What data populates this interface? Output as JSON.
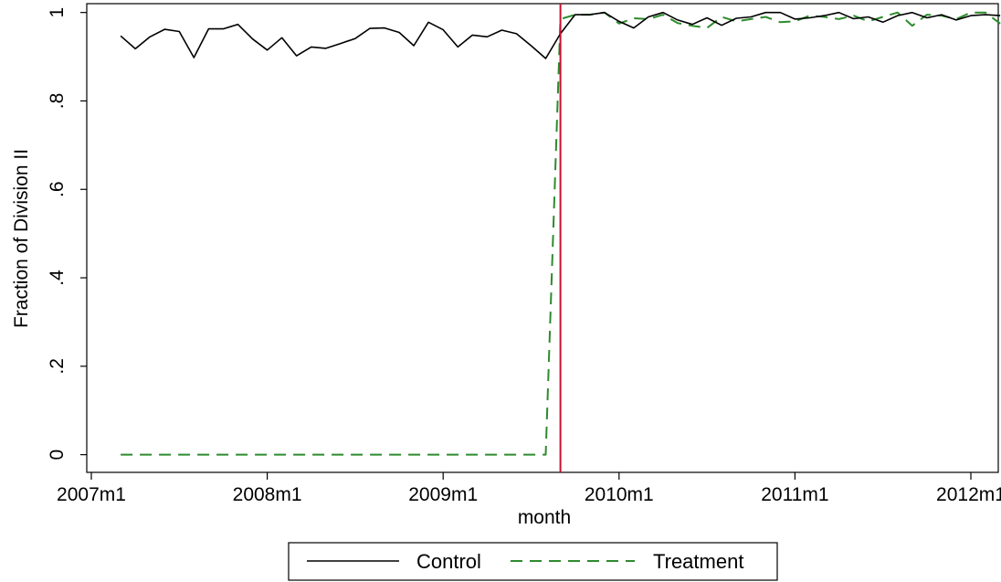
{
  "chart_data": {
    "type": "line",
    "xlabel": "month",
    "ylabel": "Fraction of Division II",
    "xlim": [
      "2007-01",
      "2012-03"
    ],
    "ylim": [
      -0.04,
      1.02
    ],
    "x_ticks": [
      {
        "date": "2007-01",
        "label": "2007m1"
      },
      {
        "date": "2008-01",
        "label": "2008m1"
      },
      {
        "date": "2009-01",
        "label": "2009m1"
      },
      {
        "date": "2010-01",
        "label": "2010m1"
      },
      {
        "date": "2011-01",
        "label": "2011m1"
      },
      {
        "date": "2012-01",
        "label": "2012m1"
      }
    ],
    "y_ticks": [
      {
        "value": 0,
        "label": "0"
      },
      {
        "value": 0.2,
        "label": ".2"
      },
      {
        "value": 0.4,
        "label": ".4"
      },
      {
        "value": 0.6,
        "label": ".6"
      },
      {
        "value": 0.8,
        "label": ".8"
      },
      {
        "value": 1,
        "label": "1"
      }
    ],
    "grid": false,
    "legend_position": "bottom",
    "reference_line": {
      "x": "2009-09",
      "color": "#c8102e"
    },
    "x": [
      "2007-03",
      "2007-04",
      "2007-05",
      "2007-06",
      "2007-07",
      "2007-08",
      "2007-09",
      "2007-10",
      "2007-11",
      "2007-12",
      "2008-01",
      "2008-02",
      "2008-03",
      "2008-04",
      "2008-05",
      "2008-06",
      "2008-07",
      "2008-08",
      "2008-09",
      "2008-10",
      "2008-11",
      "2008-12",
      "2009-01",
      "2009-02",
      "2009-03",
      "2009-04",
      "2009-05",
      "2009-06",
      "2009-07",
      "2009-08",
      "2009-09",
      "2009-10",
      "2009-11",
      "2009-12",
      "2010-01",
      "2010-02",
      "2010-03",
      "2010-04",
      "2010-05",
      "2010-06",
      "2010-07",
      "2010-08",
      "2010-09",
      "2010-10",
      "2010-11",
      "2010-12",
      "2011-01",
      "2011-02",
      "2011-03",
      "2011-04",
      "2011-05",
      "2011-06",
      "2011-07",
      "2011-08",
      "2011-09",
      "2011-10",
      "2011-11",
      "2011-12",
      "2012-01",
      "2012-02",
      "2012-03"
    ],
    "series": [
      {
        "name": "Control",
        "color": "#000000",
        "dash": "solid",
        "values": [
          0.947,
          0.918,
          0.945,
          0.962,
          0.957,
          0.898,
          0.963,
          0.963,
          0.973,
          0.94,
          0.915,
          0.943,
          0.902,
          0.922,
          0.919,
          0.93,
          0.941,
          0.964,
          0.965,
          0.955,
          0.925,
          0.978,
          0.961,
          0.922,
          0.949,
          0.945,
          0.96,
          0.952,
          0.925,
          0.896,
          0.952,
          0.995,
          0.995,
          1.0,
          0.98,
          0.965,
          0.99,
          1.0,
          0.983,
          0.973,
          0.988,
          0.971,
          0.987,
          0.99,
          1.0,
          1.0,
          0.985,
          0.988,
          0.993,
          1.0,
          0.986,
          0.99,
          0.978,
          0.993,
          1.0,
          0.988,
          0.995,
          0.983,
          0.993,
          0.995,
          0.993
        ]
      },
      {
        "name": "Treatment",
        "color": "#2e8b2e",
        "dash": "dashed",
        "values": [
          0,
          0,
          0,
          0,
          0,
          0,
          0,
          0,
          0,
          0,
          0,
          0,
          0,
          0,
          0,
          0,
          0,
          0,
          0,
          0,
          0,
          0,
          0,
          0,
          0,
          0,
          0,
          0,
          0,
          0,
          0.985,
          0.995,
          0.995,
          1.0,
          0.975,
          0.987,
          0.985,
          0.995,
          0.976,
          0.97,
          0.965,
          0.99,
          0.98,
          0.985,
          0.99,
          0.978,
          0.98,
          0.993,
          0.99,
          0.985,
          0.993,
          0.98,
          0.99,
          1.0,
          0.97,
          0.995,
          0.993,
          0.985,
          1.0,
          1.0,
          0.975
        ]
      }
    ]
  }
}
